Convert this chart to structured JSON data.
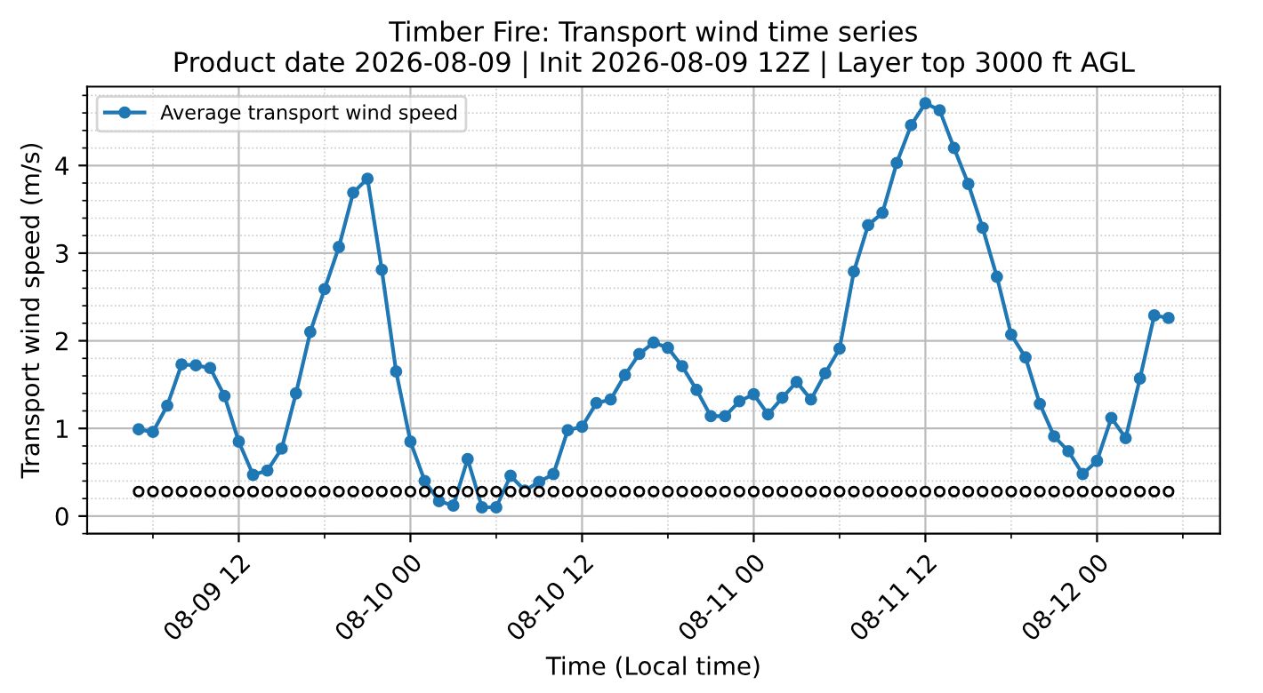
{
  "chart_data": {
    "type": "line",
    "title": "Timber Fire: Transport wind time series\nProduct date 2026-08-09 | Init 2026-08-09 12Z | Layer top 3000 ft AGL",
    "xlabel": "Time (Local time)",
    "ylabel": "Transport wind speed (m/s)",
    "x": [
      "2026-08-09T05:00",
      "2026-08-09T06:00",
      "2026-08-09T07:00",
      "2026-08-09T08:00",
      "2026-08-09T09:00",
      "2026-08-09T10:00",
      "2026-08-09T11:00",
      "2026-08-09T12:00",
      "2026-08-09T13:00",
      "2026-08-09T14:00",
      "2026-08-09T15:00",
      "2026-08-09T16:00",
      "2026-08-09T17:00",
      "2026-08-09T18:00",
      "2026-08-09T19:00",
      "2026-08-09T20:00",
      "2026-08-09T21:00",
      "2026-08-09T22:00",
      "2026-08-09T23:00",
      "2026-08-10T00:00",
      "2026-08-10T01:00",
      "2026-08-10T02:00",
      "2026-08-10T03:00",
      "2026-08-10T04:00",
      "2026-08-10T05:00",
      "2026-08-10T06:00",
      "2026-08-10T07:00",
      "2026-08-10T08:00",
      "2026-08-10T09:00",
      "2026-08-10T10:00",
      "2026-08-10T11:00",
      "2026-08-10T12:00",
      "2026-08-10T13:00",
      "2026-08-10T14:00",
      "2026-08-10T15:00",
      "2026-08-10T16:00",
      "2026-08-10T17:00",
      "2026-08-10T18:00",
      "2026-08-10T19:00",
      "2026-08-10T20:00",
      "2026-08-10T21:00",
      "2026-08-10T22:00",
      "2026-08-10T23:00",
      "2026-08-11T00:00",
      "2026-08-11T01:00",
      "2026-08-11T02:00",
      "2026-08-11T03:00",
      "2026-08-11T04:00",
      "2026-08-11T05:00",
      "2026-08-11T06:00",
      "2026-08-11T07:00",
      "2026-08-11T08:00",
      "2026-08-11T09:00",
      "2026-08-11T10:00",
      "2026-08-11T11:00",
      "2026-08-11T12:00",
      "2026-08-11T13:00",
      "2026-08-11T14:00",
      "2026-08-11T15:00",
      "2026-08-11T16:00",
      "2026-08-11T17:00",
      "2026-08-11T18:00",
      "2026-08-11T19:00",
      "2026-08-11T20:00",
      "2026-08-11T21:00",
      "2026-08-11T22:00",
      "2026-08-11T23:00",
      "2026-08-12T00:00",
      "2026-08-12T01:00",
      "2026-08-12T02:00",
      "2026-08-12T03:00",
      "2026-08-12T04:00",
      "2026-08-12T05:00"
    ],
    "series": [
      {
        "name": "Average transport wind speed",
        "color": "#1f77b4",
        "marker": "circle",
        "line_style": "solid",
        "values": [
          0.99,
          0.96,
          1.26,
          1.73,
          1.72,
          1.69,
          1.37,
          0.85,
          0.47,
          0.52,
          0.77,
          1.4,
          2.1,
          2.59,
          3.07,
          3.69,
          3.85,
          2.81,
          1.65,
          0.85,
          0.4,
          0.17,
          0.12,
          0.65,
          0.1,
          0.1,
          0.46,
          0.29,
          0.39,
          0.48,
          0.98,
          1.02,
          1.29,
          1.33,
          1.61,
          1.85,
          1.98,
          1.92,
          1.71,
          1.44,
          1.14,
          1.14,
          1.31,
          1.39,
          1.16,
          1.35,
          1.53,
          1.33,
          1.63,
          1.91,
          2.79,
          3.32,
          3.46,
          4.03,
          4.46,
          4.71,
          4.63,
          4.2,
          3.79,
          3.29,
          2.73,
          2.07,
          1.81,
          1.28,
          0.91,
          0.74,
          0.48,
          0.63,
          1.12,
          0.89,
          1.57,
          2.29,
          2.26
        ]
      },
      {
        "type": "scatter",
        "color": "#000000",
        "marker": "circle",
        "values": [
          0.28,
          0.28,
          0.28,
          0.28,
          0.28,
          0.28,
          0.28,
          0.28,
          0.28,
          0.28,
          0.28,
          0.28,
          0.28,
          0.28,
          0.28,
          0.28,
          0.28,
          0.28,
          0.28,
          0.28,
          0.28,
          0.28,
          0.28,
          0.28,
          0.28,
          0.28,
          0.28,
          0.28,
          0.28,
          0.28,
          0.28,
          0.28,
          0.28,
          0.28,
          0.28,
          0.28,
          0.28,
          0.28,
          0.28,
          0.28,
          0.28,
          0.28,
          0.28,
          0.28,
          0.28,
          0.28,
          0.28,
          0.28,
          0.28,
          0.28,
          0.28,
          0.28,
          0.28,
          0.28,
          0.28,
          0.28,
          0.28,
          0.28,
          0.28,
          0.28,
          0.28,
          0.28,
          0.28,
          0.28,
          0.28,
          0.28,
          0.28,
          0.28,
          0.28,
          0.28,
          0.28,
          0.28,
          0.28
        ]
      }
    ],
    "xlim": [
      "2026-08-09T01:24",
      "2026-08-12T08:36"
    ],
    "xticks": [
      {
        "value": "2026-08-09T12:00",
        "label": "08-09 12"
      },
      {
        "value": "2026-08-10T00:00",
        "label": "08-10 00"
      },
      {
        "value": "2026-08-10T12:00",
        "label": "08-10 12"
      },
      {
        "value": "2026-08-11T00:00",
        "label": "08-11 00"
      },
      {
        "value": "2026-08-11T12:00",
        "label": "08-11 12"
      },
      {
        "value": "2026-08-12T00:00",
        "label": "08-12 00"
      }
    ],
    "ylim": [
      -0.2,
      4.9
    ],
    "yticks": [
      0,
      1,
      2,
      3,
      4
    ],
    "grid": true,
    "legend": "top left"
  }
}
